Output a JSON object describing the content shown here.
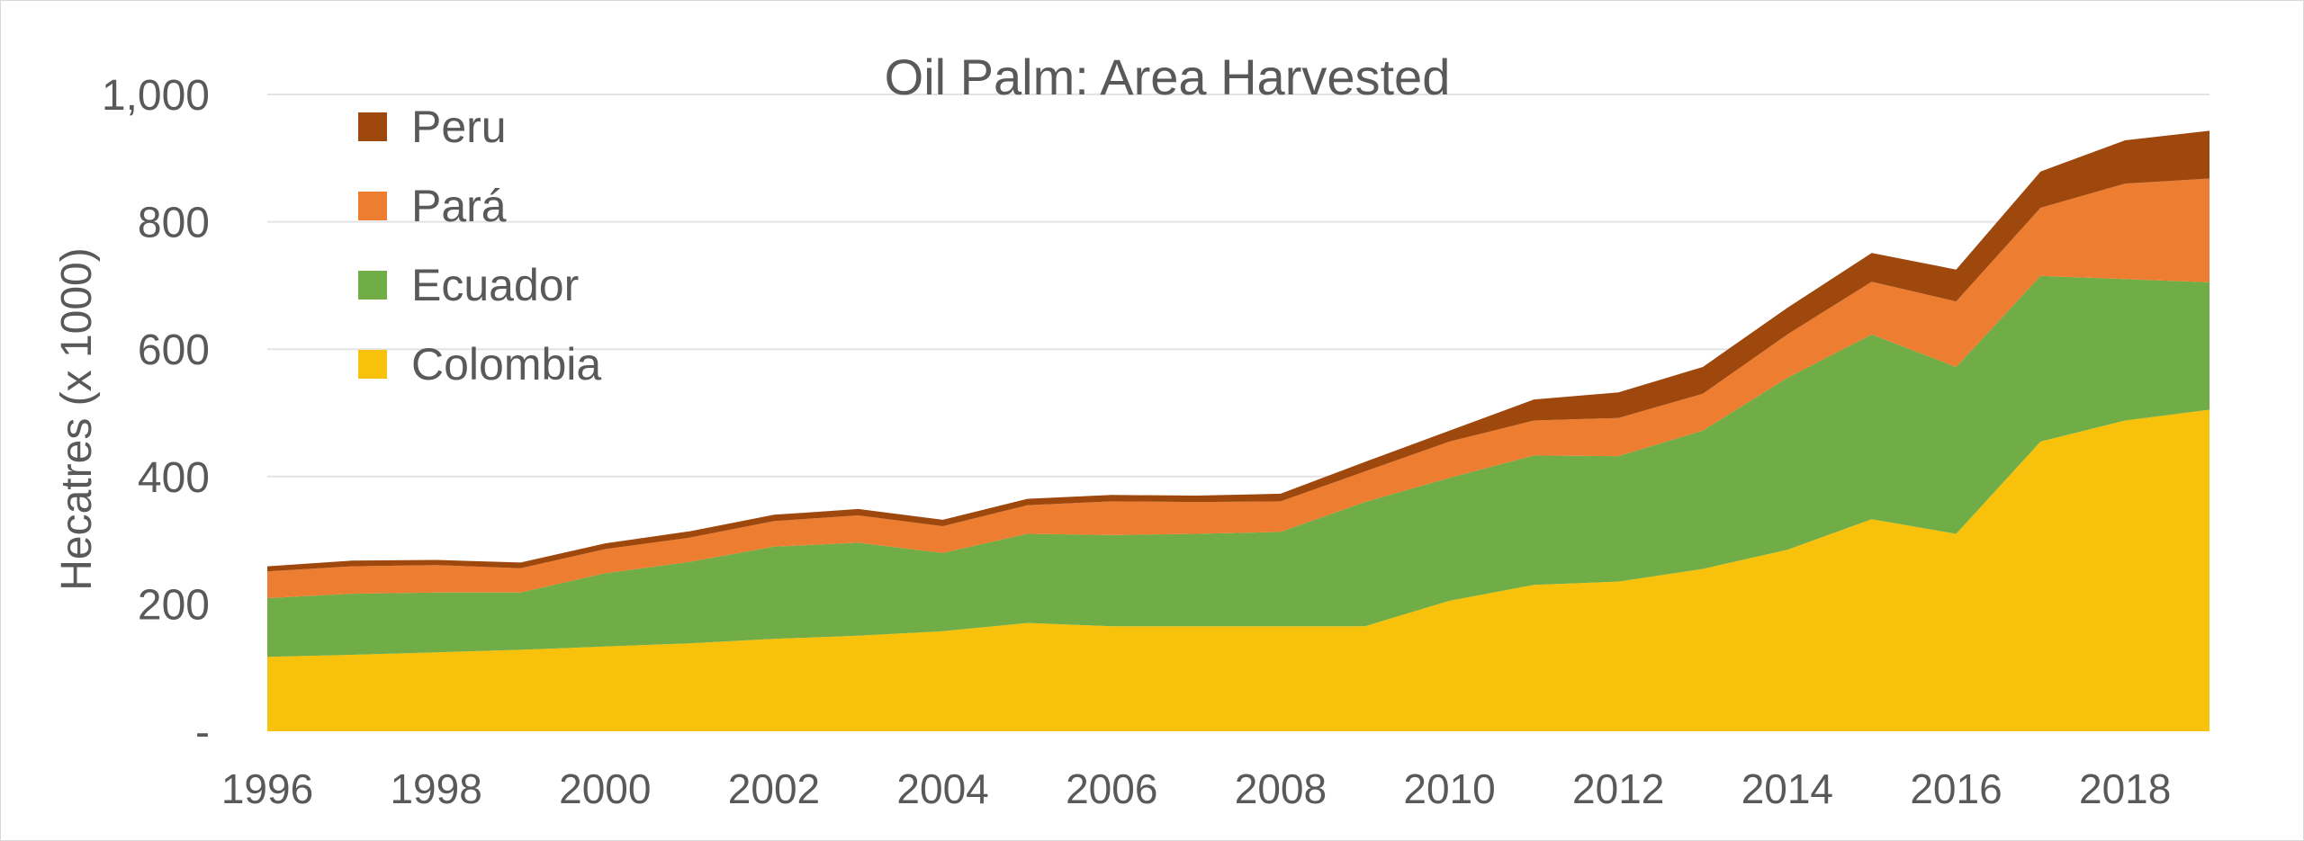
{
  "chart_data": {
    "type": "area",
    "stacked": true,
    "title": "Oil Palm: Area Harvested",
    "xlabel": "",
    "ylabel": "Hecatres (x 1000)",
    "xlim": [
      1996,
      2019
    ],
    "ylim": [
      0,
      1000
    ],
    "y_ticks": [
      {
        "value": 0,
        "label": "-"
      },
      {
        "value": 200,
        "label": "200"
      },
      {
        "value": 400,
        "label": "400"
      },
      {
        "value": 600,
        "label": "600"
      },
      {
        "value": 800,
        "label": "800"
      },
      {
        "value": 1000,
        "label": "1,000"
      }
    ],
    "x_ticks": [
      "1996",
      "1998",
      "2000",
      "2002",
      "2004",
      "2006",
      "2008",
      "2010",
      "2012",
      "2014",
      "2016",
      "2018"
    ],
    "grid": true,
    "legend_position": "top-left",
    "x": [
      1996,
      1997,
      1998,
      1999,
      2000,
      2001,
      2002,
      2003,
      2004,
      2005,
      2006,
      2007,
      2008,
      2009,
      2010,
      2011,
      2012,
      2013,
      2014,
      2015,
      2016,
      2017,
      2018,
      2019
    ],
    "series": [
      {
        "name": "Colombia",
        "color": "#F8C10C",
        "values": [
          117,
          120,
          124,
          128,
          133,
          138,
          145,
          150,
          157,
          170,
          165,
          165,
          165,
          165,
          205,
          230,
          235,
          255,
          285,
          333,
          310,
          455,
          488,
          505
        ]
      },
      {
        "name": "Ecuador",
        "color": "#70AD47",
        "values": [
          92,
          96,
          94,
          90,
          115,
          128,
          145,
          146,
          123,
          140,
          143,
          145,
          148,
          195,
          193,
          203,
          197,
          217,
          270,
          290,
          262,
          260,
          222,
          200
        ]
      },
      {
        "name": "Pará",
        "color": "#ED7D31",
        "values": [
          42,
          43,
          43,
          38,
          38,
          38,
          40,
          43,
          42,
          45,
          53,
          50,
          48,
          48,
          57,
          55,
          60,
          58,
          68,
          83,
          103,
          107,
          150,
          163
        ]
      },
      {
        "name": "Peru",
        "color": "#9E480E",
        "values": [
          8,
          9,
          8,
          9,
          9,
          10,
          10,
          10,
          10,
          10,
          10,
          10,
          12,
          15,
          17,
          33,
          40,
          42,
          42,
          45,
          50,
          57,
          68,
          75
        ]
      }
    ]
  }
}
